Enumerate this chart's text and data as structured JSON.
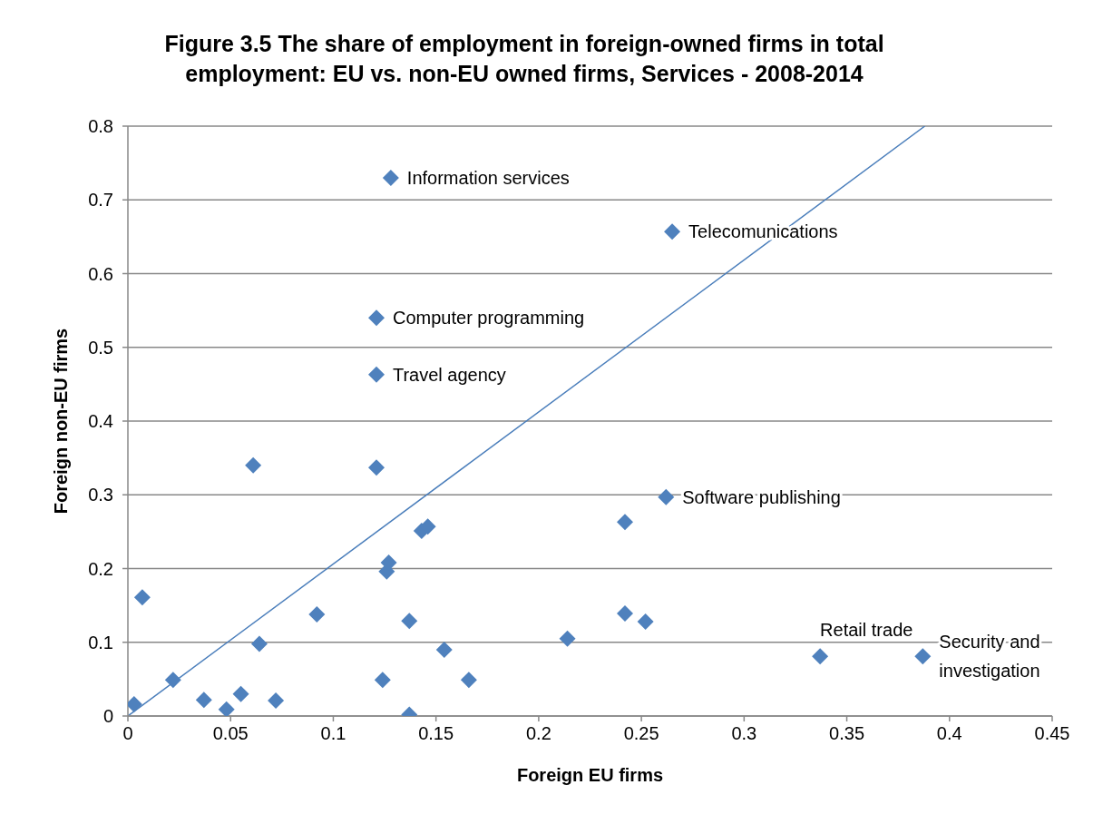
{
  "chart_data": {
    "type": "scatter",
    "title": "Figure 3.5 The share of employment in foreign-owned firms in total employment: EU vs. non-EU owned firms, Services - 2008-2014",
    "xlabel": "Foreign EU firms",
    "ylabel": "Foreign non-EU firms",
    "series": [
      {
        "color": "#4f81bd",
        "marker": "diamond",
        "x": [
          0.003,
          0.007,
          0.022,
          0.037,
          0.048,
          0.055,
          0.061,
          0.064,
          0.072,
          0.092,
          0.121,
          0.121,
          0.121,
          0.124,
          0.126,
          0.127,
          0.128,
          0.137,
          0.137,
          0.143,
          0.146,
          0.154,
          0.166,
          0.214,
          0.242,
          0.242,
          0.252,
          0.262,
          0.265,
          0.337,
          0.387
        ],
        "values": [
          0.016,
          0.161,
          0.049,
          0.022,
          0.009,
          0.03,
          0.34,
          0.098,
          0.021,
          0.138,
          0.54,
          0.463,
          0.337,
          0.049,
          0.196,
          0.208,
          0.73,
          0.129,
          0.002,
          0.251,
          0.257,
          0.09,
          0.049,
          0.105,
          0.263,
          0.139,
          0.128,
          0.297,
          0.657,
          0.081,
          0.081
        ]
      },
      {
        "type": "line",
        "color": "#4a7ebb",
        "marker": "none",
        "x": [
          0,
          0.388
        ],
        "values": [
          0,
          0.8
        ]
      }
    ],
    "annotations": [
      {
        "text": "Information services",
        "x": 0.128,
        "y": 0.73
      },
      {
        "text": "Telecomunications",
        "x": 0.265,
        "y": 0.657
      },
      {
        "text": "Computer programming",
        "x": 0.121,
        "y": 0.54
      },
      {
        "text": "Travel agency",
        "x": 0.121,
        "y": 0.463
      },
      {
        "text": "Software publishing",
        "x": 0.262,
        "y": 0.297
      },
      {
        "text": "Retail trade",
        "x": 0.337,
        "y": 0.081
      },
      {
        "text": "Security and investigation",
        "x": 0.387,
        "y": 0.081
      }
    ],
    "xlim": [
      0,
      0.45
    ],
    "xticks": [
      0,
      0.05,
      0.1,
      0.15,
      0.2,
      0.25,
      0.3,
      0.35,
      0.4,
      0.45
    ],
    "ylim": [
      0,
      0.8
    ],
    "yticks": [
      0,
      0.1,
      0.2,
      0.3,
      0.4,
      0.5,
      0.6,
      0.7,
      0.8
    ],
    "grid": "y",
    "legend": false
  }
}
